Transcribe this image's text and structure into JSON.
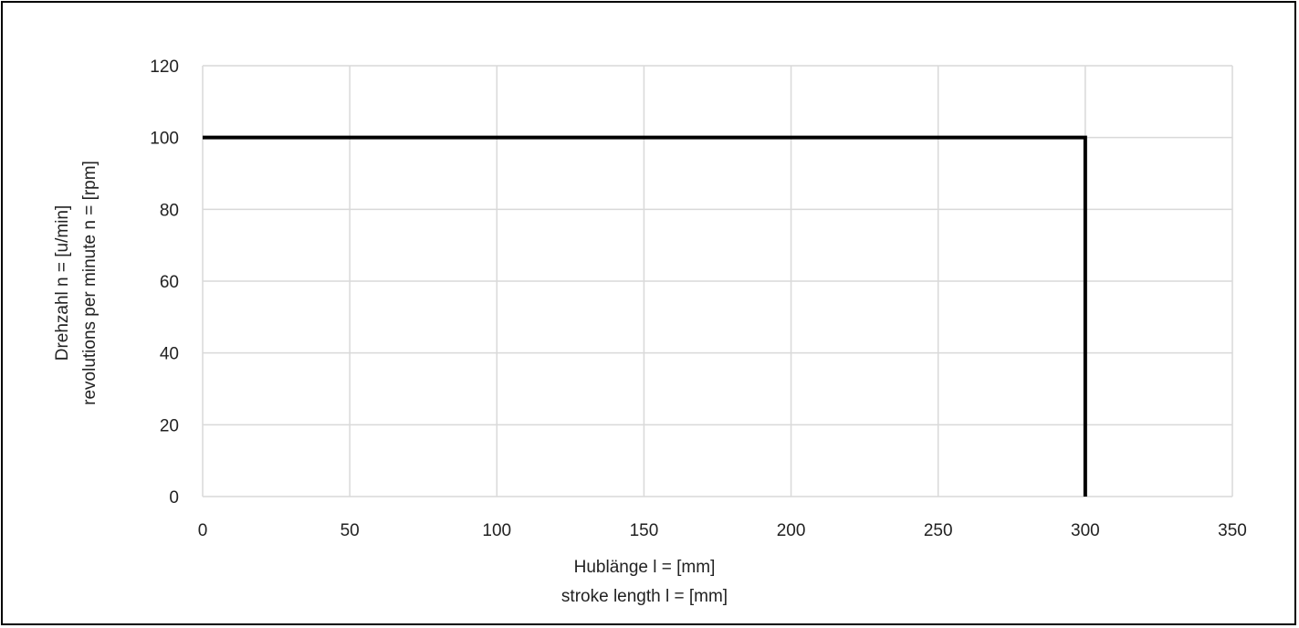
{
  "chart_data": {
    "type": "line",
    "title": "",
    "xlabel": [
      "Hublänge l = [mm]",
      "stroke length l = [mm]"
    ],
    "ylabel": [
      "Drehzahl n = [u/min]",
      "revolutions per minute n = [rpm]"
    ],
    "xlim": [
      0,
      350
    ],
    "ylim": [
      0,
      120
    ],
    "x_ticks": [
      0,
      50,
      100,
      150,
      200,
      250,
      300,
      350
    ],
    "y_ticks": [
      0,
      20,
      40,
      60,
      80,
      100,
      120
    ],
    "grid": true,
    "legend": "none",
    "series": [
      {
        "x": [
          0,
          300,
          300
        ],
        "y": [
          100,
          100,
          0
        ],
        "color": "#000000"
      }
    ]
  }
}
